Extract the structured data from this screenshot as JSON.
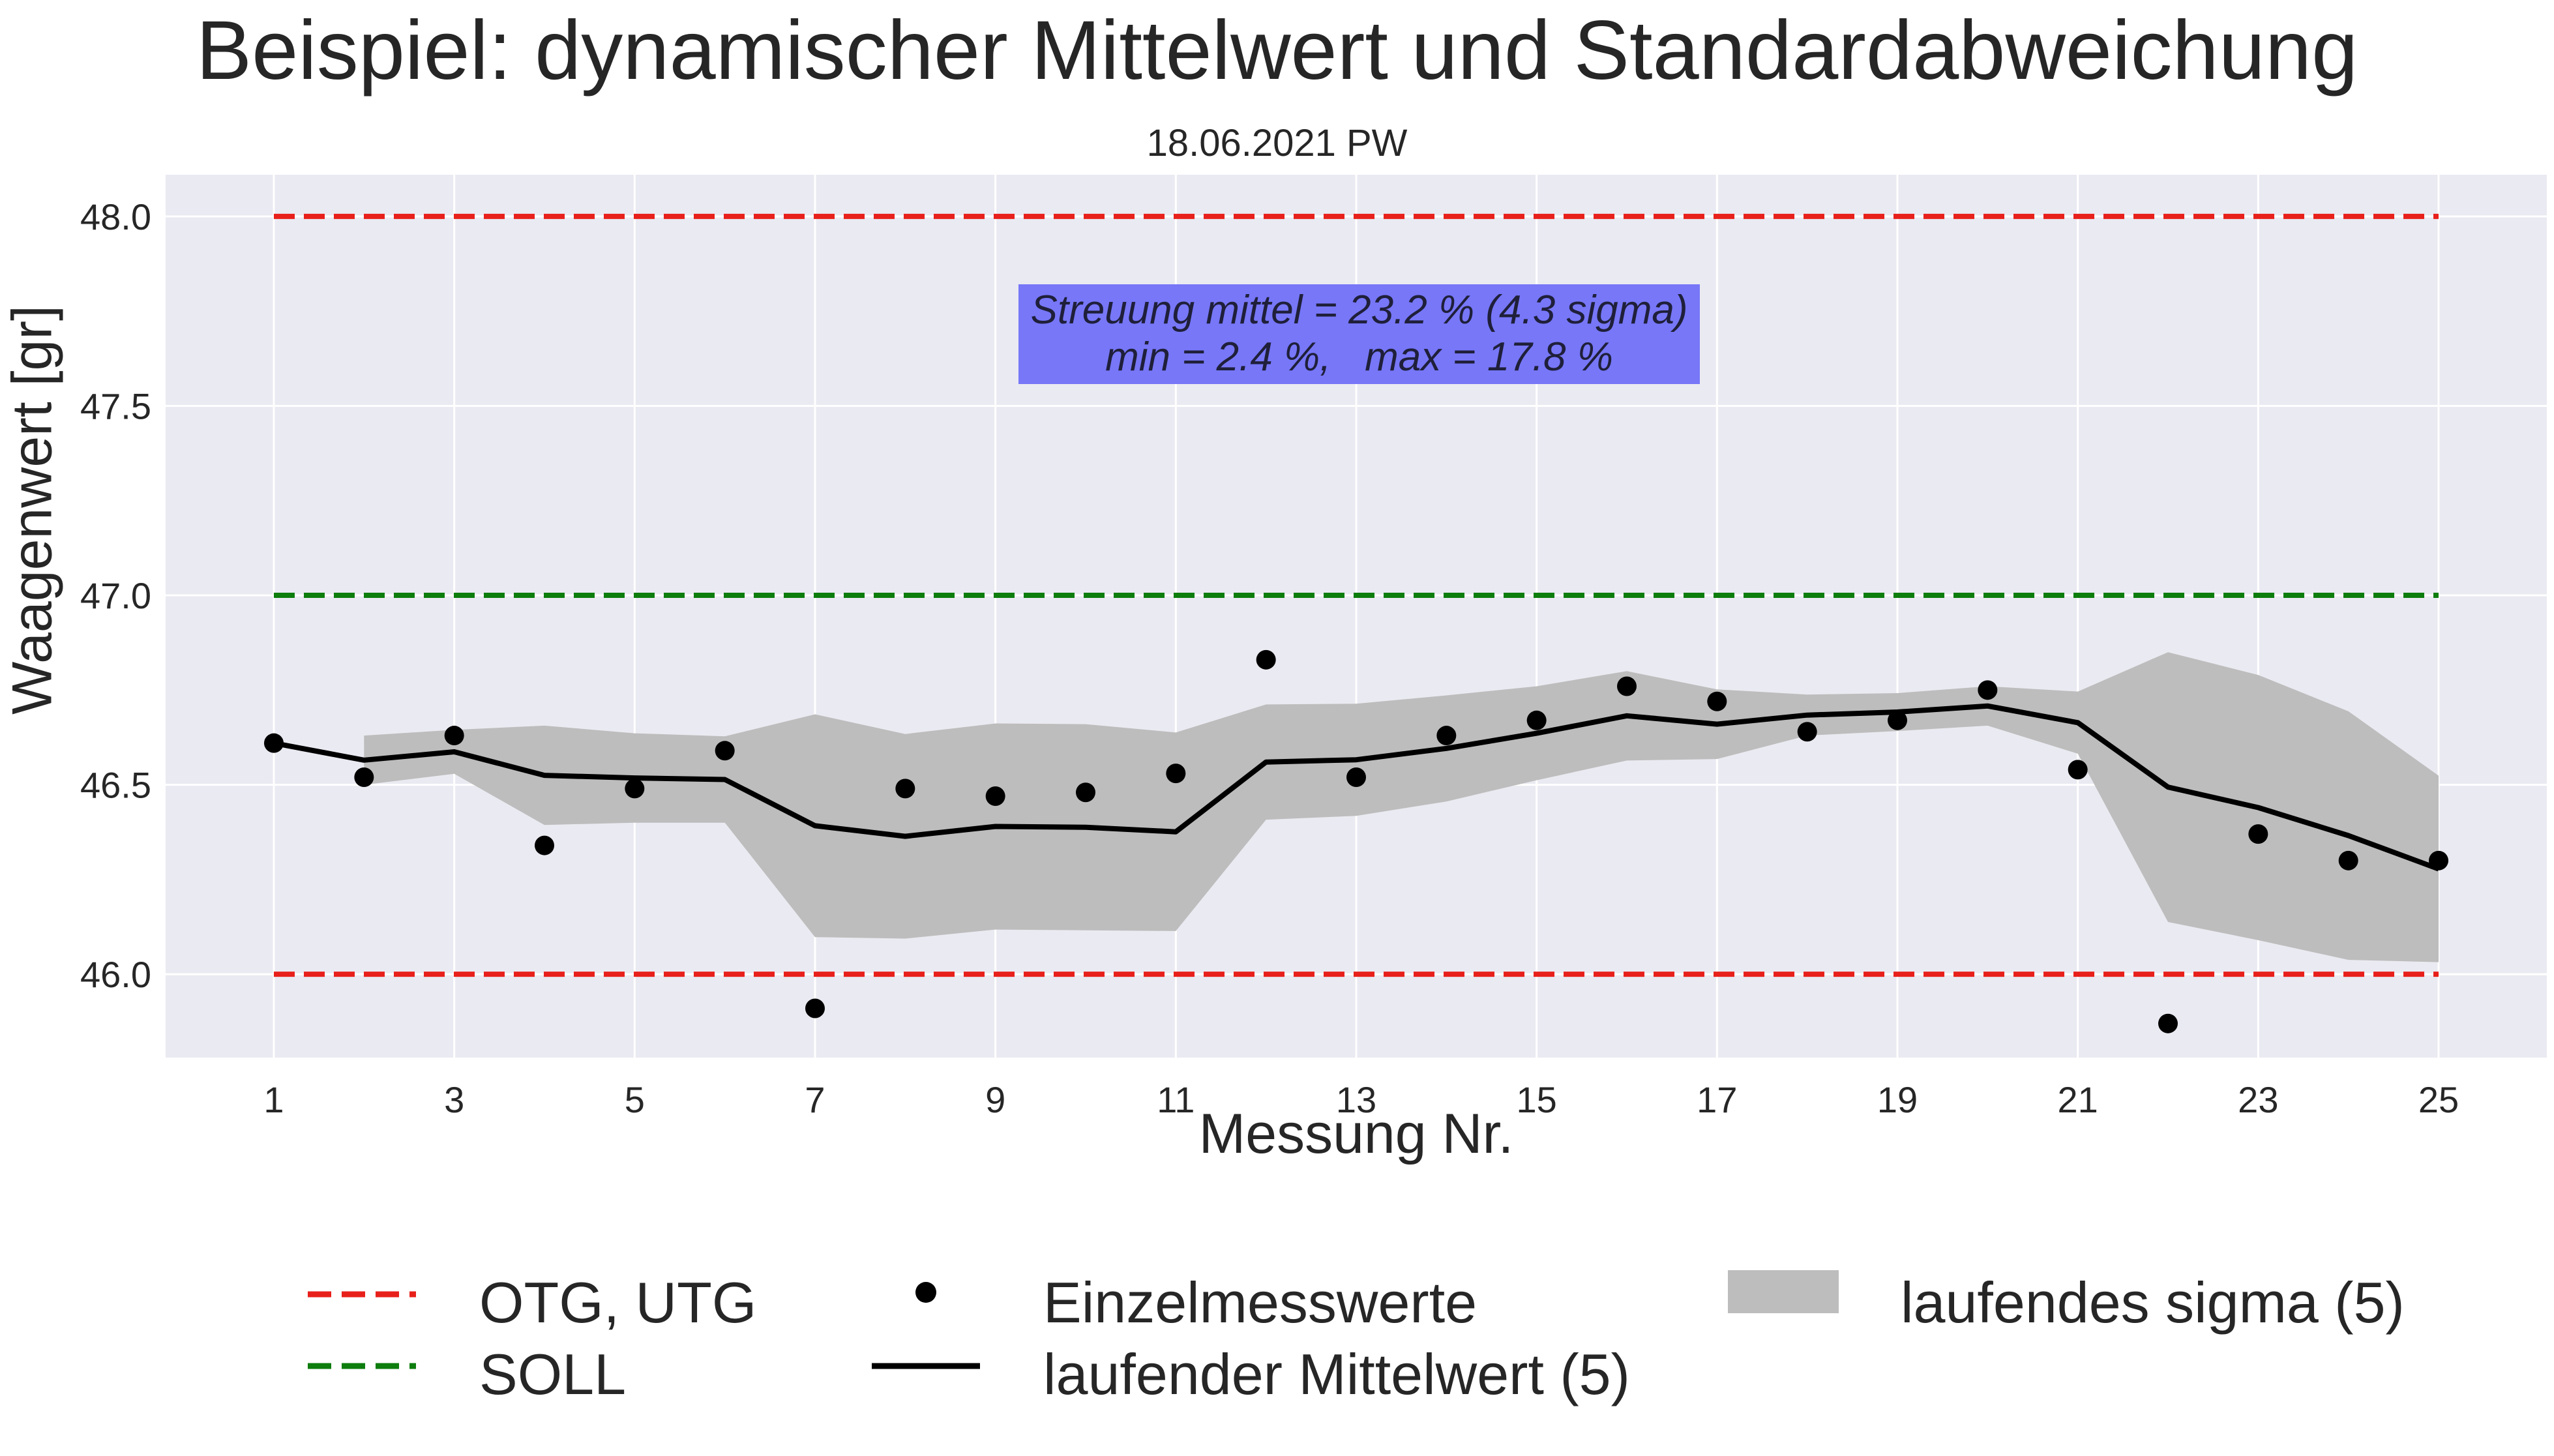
{
  "chart_data": {
    "type": "line",
    "title": "Beispiel: dynamischer Mittelwert und Standardabweichung",
    "subtitle": "18.06.2021 PW",
    "xlabel": "Messung Nr.",
    "ylabel": "Waagenwert [gr]",
    "xlim": [
      -0.2,
      26.2
    ],
    "ylim": [
      45.78,
      48.11
    ],
    "xticks": [
      1,
      3,
      5,
      7,
      9,
      11,
      13,
      15,
      17,
      19,
      21,
      23,
      25
    ],
    "yticks": [
      46.0,
      46.5,
      47.0,
      47.5,
      48.0
    ],
    "xtick_labels": [
      "1",
      "3",
      "5",
      "7",
      "9",
      "11",
      "13",
      "15",
      "17",
      "19",
      "21",
      "23",
      "25"
    ],
    "ytick_labels": [
      "46.0",
      "46.5",
      "47.0",
      "47.5",
      "48.0"
    ],
    "grid": true,
    "x": [
      1,
      2,
      3,
      4,
      5,
      6,
      7,
      8,
      9,
      10,
      11,
      12,
      13,
      14,
      15,
      16,
      17,
      18,
      19,
      20,
      21,
      22,
      23,
      24,
      25
    ],
    "series": [
      {
        "name": "OTG, UTG",
        "style": "dashed",
        "color": "#e8201b",
        "lines": [
          {
            "x": [
              1,
              25
            ],
            "y": [
              48.0,
              48.0
            ]
          },
          {
            "x": [
              1,
              25
            ],
            "y": [
              46.0,
              46.0
            ]
          }
        ]
      },
      {
        "name": "SOLL",
        "style": "dashed",
        "color": "#0d7d0d",
        "lines": [
          {
            "x": [
              1,
              25
            ],
            "y": [
              47.0,
              47.0
            ]
          }
        ]
      },
      {
        "name": "Einzelmesswerte",
        "style": "markers",
        "color": "#000000",
        "values": [
          46.61,
          46.52,
          46.63,
          46.34,
          46.49,
          46.59,
          45.91,
          46.49,
          46.47,
          46.48,
          46.53,
          46.83,
          46.52,
          46.63,
          46.67,
          46.76,
          46.72,
          46.64,
          46.67,
          46.75,
          46.54,
          45.87,
          46.37,
          46.3,
          46.3
        ]
      },
      {
        "name": "laufender Mittelwert (5)",
        "style": "solid",
        "color": "#000000",
        "values": [
          46.61,
          46.565,
          46.587,
          46.525,
          46.518,
          46.514,
          46.392,
          46.364,
          46.39,
          46.388,
          46.376,
          46.56,
          46.566,
          46.596,
          46.636,
          46.682,
          46.66,
          46.684,
          46.692,
          46.708,
          46.664,
          46.494,
          46.44,
          46.366,
          46.278
        ]
      },
      {
        "name": "laufendes sigma (5)",
        "style": "band",
        "color": "#bdbdbd",
        "x": [
          2,
          3,
          4,
          5,
          6,
          7,
          8,
          9,
          10,
          11,
          12,
          13,
          14,
          15,
          16,
          17,
          18,
          19,
          20,
          21,
          22,
          23,
          24,
          25
        ],
        "upper": [
          46.63,
          46.645,
          46.656,
          46.636,
          46.628,
          46.686,
          46.634,
          46.662,
          46.66,
          46.638,
          46.712,
          46.714,
          46.736,
          46.76,
          46.8,
          46.752,
          46.738,
          46.742,
          46.76,
          46.746,
          46.85,
          46.79,
          46.694,
          46.524
        ],
        "lower": [
          46.5,
          46.529,
          46.394,
          46.4,
          46.4,
          46.098,
          46.094,
          46.118,
          46.116,
          46.114,
          46.408,
          46.418,
          46.456,
          46.512,
          46.564,
          46.568,
          46.63,
          46.642,
          46.656,
          46.582,
          46.138,
          46.09,
          46.038,
          46.032
        ]
      }
    ],
    "legend_position": "bottom-outside",
    "annotation": {
      "line1": "Streuung mittel = 23.2 % (4.3 sigma)",
      "line2": "min = 2.4 %,   max = 17.8 %",
      "background": "#7777f8"
    },
    "background_color": "#eaeaf2",
    "grid_color": "#ffffff"
  }
}
